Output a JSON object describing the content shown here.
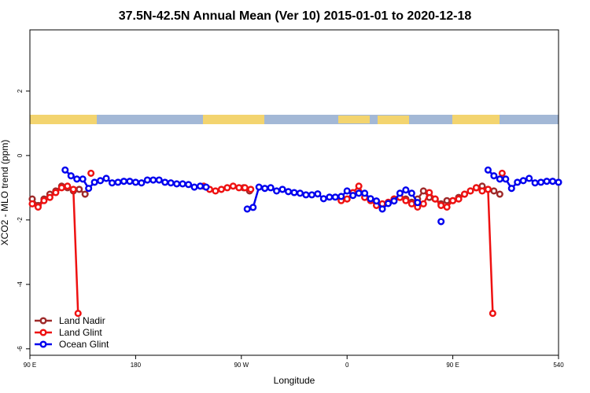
{
  "chart_data": {
    "type": "line",
    "title": "37.5N-42.5N Annual Mean (Ver 10)   2015-01-01 to 2020-12-18",
    "xlabel": "Longitude",
    "ylabel": "XCO2 - MLO trend (ppm)",
    "xlim": [
      90,
      540
    ],
    "xticks": [
      {
        "value": 90,
        "label": "90 E"
      },
      180,
      {
        "value": 270,
        "label": "90 W"
      },
      {
        "value": 360,
        "label": "0"
      },
      {
        "value": 450,
        "label": "90 E"
      },
      540
    ],
    "ylim": [
      -6.2,
      3.9
    ],
    "yticks": [
      -6,
      -4,
      -2,
      0,
      2
    ],
    "legend": "bottom-left",
    "series": [
      {
        "name": "Land Nadir",
        "color": "#9e2a2a",
        "x": [
          92,
          97,
          102,
          107,
          112,
          117,
          122,
          127,
          132,
          137,
          null,
          272,
          277,
          null,
          400,
          405,
          410,
          415,
          420,
          425,
          430,
          435,
          440,
          445,
          450,
          455,
          460,
          465,
          470,
          475,
          480,
          485,
          490
        ],
        "values": [
          -1.35,
          -1.55,
          -1.35,
          -1.2,
          -1.1,
          -0.95,
          -1.0,
          -1.1,
          -1.05,
          -1.2,
          null,
          -1.0,
          -1.1,
          null,
          -1.35,
          -1.3,
          -1.35,
          -1.45,
          -1.35,
          -1.1,
          -1.3,
          -1.35,
          -1.5,
          -1.4,
          -1.4,
          -1.3,
          -1.2,
          -1.1,
          -1.0,
          -0.95,
          -1.05,
          -1.1,
          -1.2
        ]
      },
      {
        "name": "Land Glint",
        "color": "#ee1111",
        "x": [
          92,
          97,
          102,
          107,
          112,
          117,
          122,
          127,
          131,
          null,
          142,
          null,
          238,
          243,
          248,
          253,
          258,
          263,
          268,
          273,
          278,
          null,
          355,
          360,
          365,
          370,
          375,
          380,
          385,
          390,
          395,
          400,
          405,
          410,
          415,
          420,
          425,
          430,
          435,
          440,
          445,
          450,
          455,
          460,
          465,
          470,
          475,
          480,
          484,
          null,
          492
        ],
        "values": [
          -1.5,
          -1.6,
          -1.4,
          -1.3,
          -1.15,
          -1.0,
          -0.95,
          -1.05,
          -4.9,
          null,
          -0.55,
          null,
          -0.95,
          -1.05,
          -1.1,
          -1.05,
          -1.0,
          -0.95,
          -1.0,
          -1.0,
          -1.05,
          null,
          -1.4,
          -1.35,
          -1.15,
          -0.95,
          -1.3,
          -1.4,
          -1.55,
          -1.5,
          -1.45,
          -1.35,
          -1.3,
          -1.4,
          -1.5,
          -1.6,
          -1.5,
          -1.15,
          -1.35,
          -1.55,
          -1.6,
          -1.4,
          -1.35,
          -1.2,
          -1.1,
          -1.0,
          -1.1,
          -1.05,
          -4.9,
          null,
          -0.55
        ]
      },
      {
        "name": "Ocean Glint",
        "color": "#0000ee",
        "x": [
          120,
          125,
          130,
          135,
          140,
          145,
          150,
          155,
          160,
          165,
          170,
          175,
          180,
          185,
          190,
          195,
          200,
          205,
          210,
          215,
          220,
          225,
          230,
          235,
          240,
          null,
          275,
          280,
          285,
          290,
          295,
          300,
          305,
          310,
          315,
          320,
          325,
          330,
          335,
          340,
          345,
          350,
          355,
          360,
          365,
          370,
          375,
          380,
          385,
          390,
          395,
          400,
          405,
          410,
          415,
          420,
          null,
          440,
          null,
          480,
          485,
          490,
          495,
          500,
          505,
          510,
          515,
          520,
          525,
          530,
          535,
          540
        ],
        "values": [
          -0.45,
          -0.63,
          -0.73,
          -0.73,
          -1.02,
          -0.83,
          -0.78,
          -0.71,
          -0.85,
          -0.83,
          -0.8,
          -0.8,
          -0.83,
          -0.85,
          -0.76,
          -0.76,
          -0.76,
          -0.83,
          -0.85,
          -0.88,
          -0.88,
          -0.9,
          -0.98,
          -0.95,
          -0.98,
          null,
          -1.66,
          -1.61,
          -0.98,
          -1.02,
          -1.0,
          -1.1,
          -1.05,
          -1.12,
          -1.15,
          -1.17,
          -1.22,
          -1.22,
          -1.19,
          -1.34,
          -1.29,
          -1.29,
          -1.27,
          -1.1,
          -1.24,
          -1.17,
          -1.17,
          -1.34,
          -1.41,
          -1.66,
          -1.49,
          -1.41,
          -1.17,
          -1.07,
          -1.17,
          -1.46,
          null,
          -2.05,
          null,
          -0.45,
          -0.63,
          -0.73,
          -0.73,
          -1.02,
          -0.83,
          -0.78,
          -0.71,
          -0.85,
          -0.83,
          -0.8,
          -0.8,
          -0.83
        ]
      }
    ]
  }
}
